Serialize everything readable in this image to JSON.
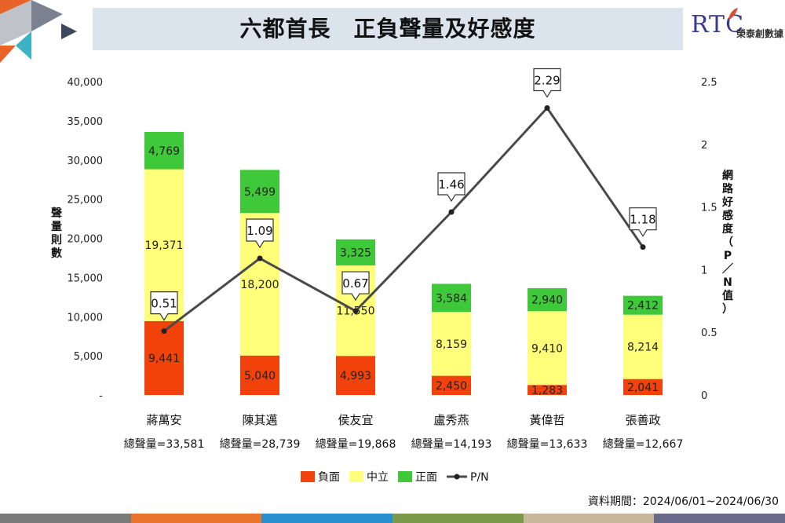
{
  "header": {
    "title": "六都首長　正負聲量及好感度",
    "logo_text": "RTC",
    "logo_name": "榮泰創數據"
  },
  "footer": {
    "date_range": "資料期間：2024/06/01~2024/06/30",
    "stripe_colors": [
      "#7a7a7a",
      "#e8732a",
      "#2a8fcf",
      "#7a9a4a",
      "#c8b89a",
      "#6a6a8a"
    ]
  },
  "chart_data": {
    "type": "bar",
    "stacked": true,
    "categories": [
      "蔣萬安",
      "陳其邁",
      "侯友宜",
      "盧秀燕",
      "黃偉哲",
      "張善政"
    ],
    "totals": [
      "總聲量=33,581",
      "總聲量=28,739",
      "總聲量=19,868",
      "總聲量=14,193",
      "總聲量=13,633",
      "總聲量=12,667"
    ],
    "series": [
      {
        "name": "負面",
        "color": "#f2420c",
        "values": [
          9441,
          5040,
          4993,
          2450,
          1283,
          2041
        ]
      },
      {
        "name": "中立",
        "color": "#ffff7a",
        "values": [
          19371,
          18200,
          11550,
          8159,
          9410,
          8214
        ]
      },
      {
        "name": "正面",
        "color": "#3fc93a",
        "values": [
          4769,
          5499,
          3325,
          3584,
          2940,
          2412
        ]
      }
    ],
    "line_series": {
      "name": "P/N",
      "color": "#4a4a4a",
      "values": [
        0.51,
        1.09,
        0.67,
        1.46,
        2.29,
        1.18
      ]
    },
    "ylabel": "聲量則數",
    "y2label": "網路好感度（P／N值）",
    "ylim": [
      0,
      40000
    ],
    "y2lim": [
      0,
      2.5
    ],
    "yticks": [
      "-",
      "5,000",
      "10,000",
      "15,000",
      "20,000",
      "25,000",
      "30,000",
      "35,000",
      "40,000"
    ],
    "y2ticks": [
      "0",
      "0.5",
      "1",
      "1.5",
      "2",
      "2.5"
    ],
    "legend_position": "bottom",
    "grid": false
  }
}
